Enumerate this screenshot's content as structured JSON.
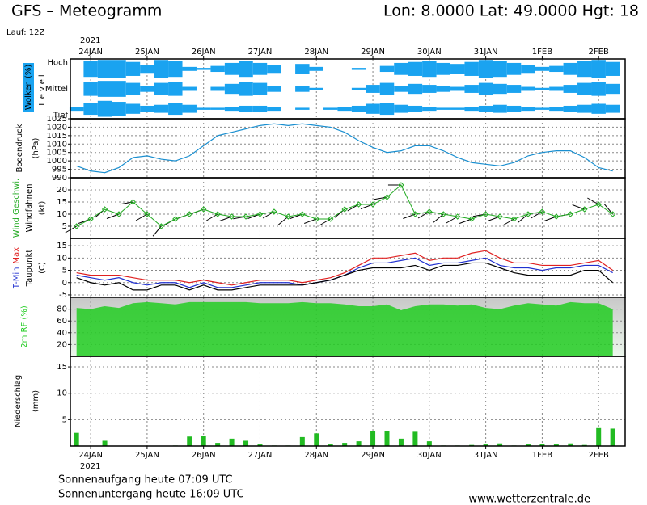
{
  "header": {
    "title": "GFS – Meteogramm",
    "location": "Lon: 8.0000  Lat: 49.0000  Hgt: 18",
    "run": "Lauf: 12Z"
  },
  "footer": {
    "sunrise": "Sonnenaufgang heute 07:09 UTC",
    "sunset": "Sonnenuntergang heute 16:09 UTC",
    "source": "www.wetterzentrale.de"
  },
  "time_axis": {
    "year": "2021",
    "xlim": [
      -0.36,
      9.47
    ],
    "xticks": [
      {
        "value": 0,
        "label": "24JAN"
      },
      {
        "value": 1,
        "label": "25JAN"
      },
      {
        "value": 2,
        "label": "26JAN"
      },
      {
        "value": 3,
        "label": "27JAN"
      },
      {
        "value": 4,
        "label": "28JAN"
      },
      {
        "value": 5,
        "label": "29JAN"
      },
      {
        "value": 6,
        "label": "30JAN"
      },
      {
        "value": 7,
        "label": "31JAN"
      },
      {
        "value": 8,
        "label": "1FEB"
      },
      {
        "value": 9,
        "label": "2FEB"
      }
    ],
    "x": [
      -0.25,
      0,
      0.25,
      0.5,
      0.75,
      1,
      1.25,
      1.5,
      1.75,
      2,
      2.25,
      2.5,
      2.75,
      3,
      3.25,
      3.5,
      3.75,
      4,
      4.25,
      4.5,
      4.75,
      5,
      5.25,
      5.5,
      5.75,
      6,
      6.25,
      6.5,
      6.75,
      7,
      7.25,
      7.5,
      7.75,
      8,
      8.25,
      8.5,
      8.75,
      9,
      9.25
    ]
  },
  "chart_data": [
    {
      "type": "cloud",
      "ylabel": "Wolken (%)",
      "level_label": "Level",
      "color": "#1aa3f0",
      "series": [
        {
          "name": "Hoch",
          "values": [
            0,
            80,
            90,
            90,
            70,
            40,
            90,
            80,
            20,
            10,
            30,
            60,
            80,
            60,
            40,
            0,
            50,
            20,
            0,
            0,
            10,
            0,
            30,
            60,
            70,
            80,
            60,
            50,
            70,
            90,
            80,
            60,
            40,
            20,
            30,
            60,
            80,
            90,
            70
          ]
        },
        {
          "name": "Mittel",
          "values": [
            0,
            70,
            80,
            80,
            60,
            30,
            60,
            70,
            20,
            0,
            20,
            50,
            70,
            60,
            30,
            0,
            30,
            10,
            0,
            0,
            10,
            40,
            60,
            30,
            50,
            40,
            30,
            20,
            40,
            60,
            50,
            40,
            20,
            10,
            20,
            40,
            60,
            70,
            50
          ]
        },
        {
          "name": "Tief",
          "values": [
            20,
            60,
            80,
            70,
            50,
            30,
            40,
            60,
            40,
            10,
            10,
            20,
            30,
            30,
            20,
            0,
            10,
            0,
            10,
            20,
            30,
            50,
            60,
            40,
            30,
            20,
            10,
            10,
            20,
            30,
            40,
            30,
            20,
            10,
            20,
            30,
            40,
            50,
            40
          ]
        }
      ]
    },
    {
      "type": "line",
      "ylabel": "Bodendruck",
      "unit": "(hPa)",
      "ylim": [
        990,
        1025
      ],
      "yticks": [
        990,
        995,
        1000,
        1005,
        1010,
        1015,
        1020,
        1025
      ],
      "series": [
        {
          "color": "#1a8fd0",
          "values": [
            997,
            994,
            993,
            996,
            1002,
            1003,
            1001,
            1000,
            1003,
            1009,
            1015,
            1017,
            1019,
            1021,
            1022,
            1021,
            1022,
            1021,
            1020,
            1017,
            1012,
            1008,
            1005,
            1006,
            1009,
            1009,
            1006,
            1002,
            999,
            998,
            997,
            999,
            1003,
            1005,
            1006,
            1006,
            1002,
            996,
            994
          ]
        }
      ]
    },
    {
      "type": "wind",
      "unit": "(kt)",
      "ylim": [
        0,
        25
      ],
      "yticks": [
        5,
        10,
        15,
        20
      ],
      "series": [
        {
          "name": "Wind Geschwi.",
          "color": "#22aa22",
          "values": [
            5,
            8,
            12,
            10,
            15,
            10,
            5,
            8,
            10,
            12,
            10,
            9,
            9,
            10,
            11,
            9,
            10,
            8,
            8,
            12,
            14,
            14,
            17,
            22,
            10,
            11,
            10,
            9,
            8,
            10,
            9,
            8,
            10,
            11,
            9,
            10,
            12,
            14,
            10
          ]
        }
      ],
      "barbs": {
        "name": "Windfahnen",
        "color": "#000000",
        "direction": [
          240,
          250,
          230,
          250,
          260,
          240,
          220,
          240,
          250,
          250,
          240,
          250,
          260,
          250,
          240,
          230,
          250,
          250,
          240,
          230,
          240,
          250,
          260,
          270,
          250,
          240,
          230,
          240,
          250,
          260,
          250,
          240,
          230,
          240,
          250,
          260,
          290,
          300,
          320
        ]
      }
    },
    {
      "type": "line",
      "unit": "(C)",
      "ylim": [
        -6,
        18
      ],
      "yticks": [
        -5,
        0,
        5,
        10,
        15
      ],
      "series": [
        {
          "name": "T-Min",
          "color": "#2030d0",
          "values": [
            3,
            2,
            1,
            2,
            0,
            -1,
            0,
            0,
            -2,
            0,
            -2,
            -2,
            -1,
            0,
            0,
            0,
            -1,
            0,
            1,
            3,
            6,
            8,
            8,
            9,
            10,
            7,
            8,
            8,
            9,
            10,
            7,
            6,
            6,
            5,
            6,
            6,
            7,
            7,
            4
          ]
        },
        {
          "name": "Max",
          "color": "#e02020",
          "values": [
            4,
            3,
            3,
            3,
            2,
            1,
            1,
            1,
            0,
            1,
            0,
            -1,
            0,
            1,
            1,
            1,
            0,
            1,
            2,
            4,
            7,
            10,
            10,
            11,
            12,
            9,
            10,
            10,
            12,
            13,
            10,
            8,
            8,
            7,
            7,
            7,
            8,
            9,
            5
          ]
        },
        {
          "name": "Taupunkt",
          "color": "#000000",
          "values": [
            2,
            0,
            -1,
            0,
            -3,
            -3,
            -1,
            -1,
            -3,
            -1,
            -3,
            -3,
            -2,
            -1,
            -1,
            -1,
            -1,
            0,
            1,
            3,
            5,
            6,
            6,
            6,
            7,
            5,
            7,
            7,
            8,
            8,
            6,
            4,
            3,
            3,
            3,
            3,
            5,
            5,
            0
          ]
        }
      ]
    },
    {
      "type": "area",
      "ylabel": "2m RF (%)",
      "ylim": [
        0,
        100
      ],
      "yticks": [
        20,
        40,
        60,
        80
      ],
      "series": [
        {
          "color": "#22cc22",
          "values": [
            82,
            80,
            85,
            82,
            90,
            92,
            90,
            88,
            92,
            92,
            92,
            92,
            92,
            90,
            90,
            90,
            92,
            90,
            90,
            88,
            85,
            85,
            88,
            78,
            85,
            88,
            88,
            86,
            88,
            82,
            80,
            86,
            90,
            88,
            86,
            92,
            90,
            90,
            80
          ]
        }
      ]
    },
    {
      "type": "bar",
      "ylabel": "Niederschlag",
      "unit": "(mm)",
      "ylim": [
        0,
        17
      ],
      "yticks": [
        5,
        10,
        15
      ],
      "series": [
        {
          "color": "#22bb22",
          "values": [
            2.5,
            0,
            1,
            0,
            0,
            0,
            0,
            0.1,
            1.8,
            1.9,
            0.6,
            1.4,
            1,
            0.3,
            0.1,
            0.1,
            1.7,
            2.4,
            0.3,
            0.6,
            0.9,
            2.8,
            2.9,
            1.4,
            2.7,
            0.9,
            0.1,
            0.1,
            0.2,
            0.3,
            0.5,
            0.1,
            0.3,
            0.4,
            0.3,
            0.5,
            0.2,
            3.4,
            3.3
          ]
        }
      ]
    }
  ]
}
